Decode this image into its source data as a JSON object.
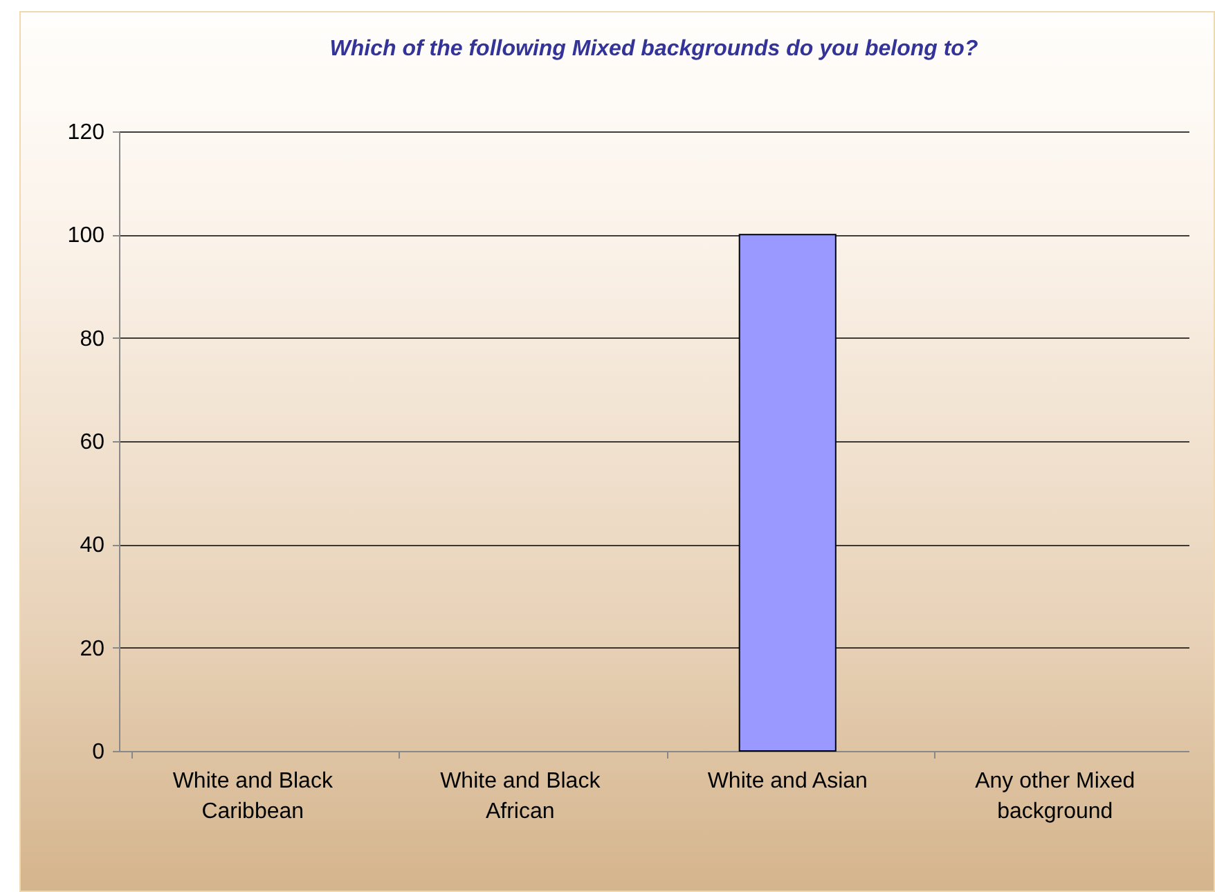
{
  "chart_data": {
    "type": "bar",
    "title": "Which of the following Mixed backgrounds do you belong to?",
    "categories": [
      "White and Black Caribbean",
      "White and Black African",
      "White and Asian",
      "Any other Mixed background"
    ],
    "values": [
      0,
      0,
      100,
      0
    ],
    "color": "#9999ff",
    "ylim": [
      0,
      120
    ],
    "yticks": [
      0,
      20,
      40,
      60,
      80,
      100,
      120
    ],
    "grid": "y"
  }
}
